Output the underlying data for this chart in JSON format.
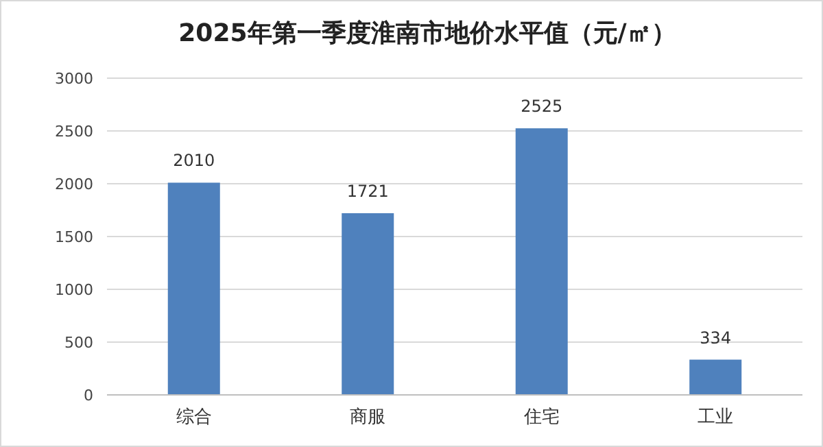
{
  "chart_data": {
    "type": "bar",
    "title": "2025年第一季度淮南市地价水平值（元/㎡）",
    "categories": [
      "综合",
      "商服",
      "住宅",
      "工业"
    ],
    "values": [
      2010,
      1721,
      2525,
      334
    ],
    "color": "#4f81bd",
    "ylim": [
      0,
      3000
    ],
    "yticks": [
      0,
      500,
      1000,
      1500,
      2000,
      2500,
      3000
    ],
    "grid": "y",
    "data_labels": true
  }
}
